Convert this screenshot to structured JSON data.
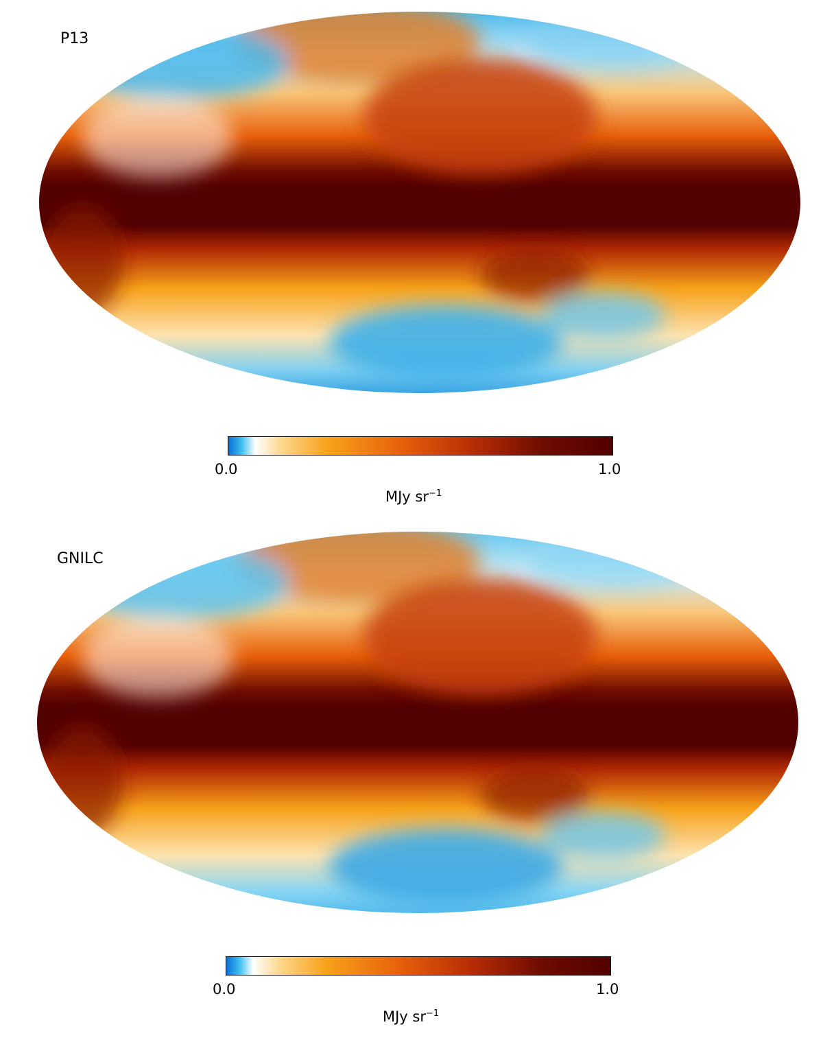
{
  "chart_data": [
    {
      "type": "heatmap",
      "title": "P13",
      "projection": "Mollweide all-sky",
      "colorbar": {
        "min_label": "0.0",
        "max_label": "1.0",
        "min": 0.0,
        "max": 1.0,
        "unit": "MJy sr",
        "unit_exponent": "−1",
        "stops": [
          "#0a6fd6",
          "#3fc0f0",
          "#ffffff",
          "#fdd78a",
          "#f7a21a",
          "#e8600a",
          "#b22a04",
          "#6e0c00",
          "#520000"
        ]
      }
    },
    {
      "type": "heatmap",
      "title": "GNILC",
      "projection": "Mollweide all-sky",
      "colorbar": {
        "min_label": "0.0",
        "max_label": "1.0",
        "min": 0.0,
        "max": 1.0,
        "unit": "MJy sr",
        "unit_exponent": "−1",
        "stops": [
          "#0a6fd6",
          "#3fc0f0",
          "#ffffff",
          "#fdd78a",
          "#f7a21a",
          "#e8600a",
          "#b22a04",
          "#6e0c00",
          "#520000"
        ]
      }
    }
  ]
}
